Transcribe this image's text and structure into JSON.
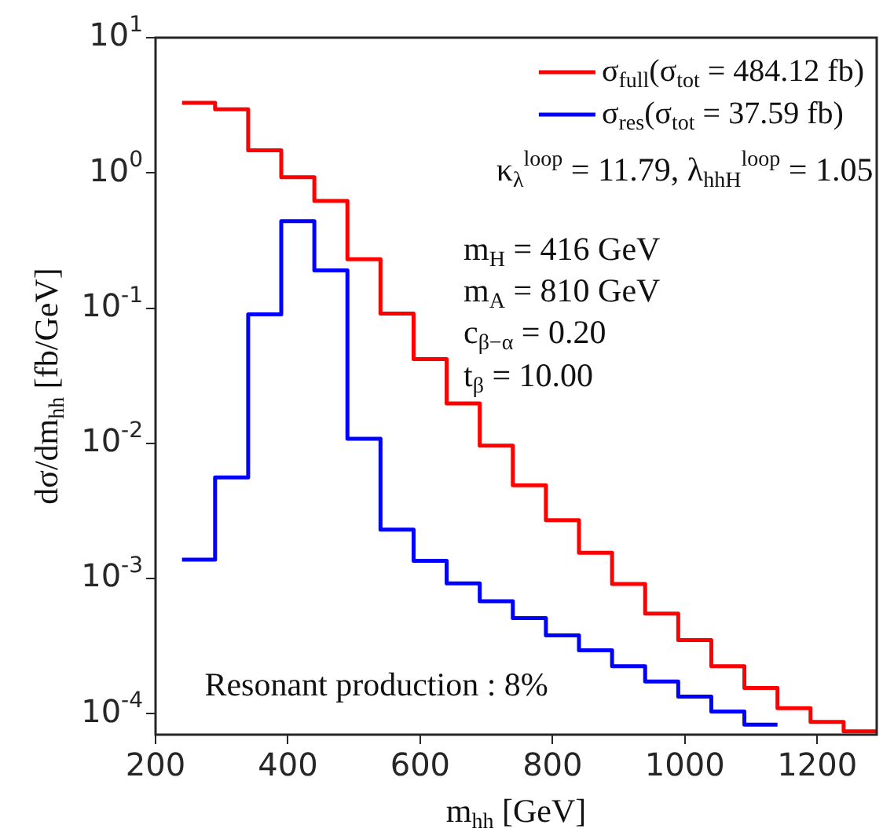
{
  "chart_data": {
    "type": "step",
    "xlabel": "m$_{hh}$ [GeV]",
    "ylabel": "dσ/dm$_{hh}$ [fb/GeV]",
    "log": "y",
    "legend": "top right",
    "marker": "none",
    "xlim": [
      200,
      1290
    ],
    "xticks": [
      200,
      400,
      600,
      800,
      1000,
      1200
    ],
    "ylim": [
      7e-05,
      10
    ],
    "yticks": [
      {
        "value": 0.0001,
        "label": "10$^{-4}$"
      },
      {
        "value": 0.001,
        "label": "10$^{-3}$"
      },
      {
        "value": 0.01,
        "label": "10$^{-2}$"
      },
      {
        "value": 0.1,
        "label": "10$^{-1}$"
      },
      {
        "value": 1,
        "label": "10$^{0}$"
      },
      {
        "value": 10,
        "label": "10$^{1}$"
      }
    ],
    "series": [
      {
        "name": "σ$_{full}$(σ$_{tot}$ = 484.12 fb)",
        "color": "#ff0000",
        "x": [
          240,
          290,
          340,
          390,
          440,
          490,
          540,
          590,
          640,
          690,
          740,
          790,
          840,
          890,
          940,
          990,
          1040,
          1090,
          1140,
          1190,
          1240,
          1290
        ],
        "values": [
          3.3,
          2.95,
          1.47,
          0.93,
          0.62,
          0.23,
          0.091,
          0.042,
          0.0197,
          0.0096,
          0.0049,
          0.0027,
          0.00155,
          0.00091,
          0.00055,
          0.00035,
          0.000225,
          0.000155,
          0.00011,
          8.7e-05,
          7.4e-05,
          7.4e-05
        ]
      },
      {
        "name": "σ$_{res}$(σ$_{tot}$ = 37.59 fb)",
        "color": "#0000ff",
        "x": [
          240,
          290,
          340,
          390,
          440,
          490,
          540,
          590,
          640,
          690,
          740,
          790,
          840,
          890,
          940,
          990,
          1040,
          1090,
          1140
        ],
        "values": [
          0.00138,
          0.0056,
          0.09,
          0.44,
          0.19,
          0.0108,
          0.0023,
          0.00135,
          0.00092,
          0.00068,
          0.00051,
          0.00038,
          0.000295,
          0.000225,
          0.000173,
          0.000134,
          0.000104,
          8.3e-05,
          8.3e-05
        ]
      }
    ],
    "annotations": [
      "κ$_{λ}$$^{loop}$ = 11.79, λ$_{hhH}$$^{loop}$ = 1.05",
      "m$_{H}$ = 416 GeV",
      "m$_{A}$ = 810 GeV",
      "c$_{β−α}$ = 0.20",
      "t$_{β}$ = 10.00",
      "Resonant production : 8%"
    ]
  }
}
